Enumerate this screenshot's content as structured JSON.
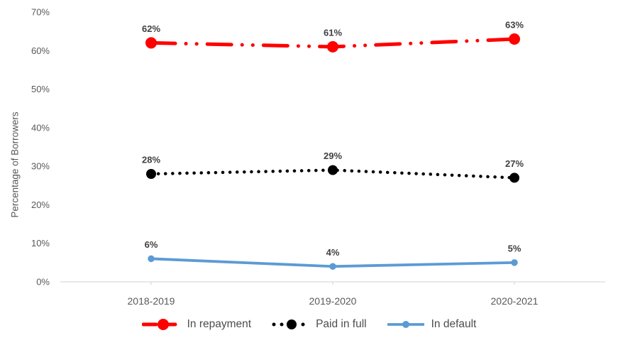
{
  "chart_data": {
    "type": "line",
    "title": "",
    "ylabel": "Percentage of Borrowers",
    "xlabel": "",
    "categories": [
      "2018-2019",
      "2019-2020",
      "2020-2021"
    ],
    "series": [
      {
        "name": "In repayment",
        "values": [
          62,
          61,
          63
        ],
        "data_labels": [
          "62%",
          "61%",
          "63%"
        ],
        "color": "#FF0000",
        "line_style": "dash-dot-dot"
      },
      {
        "name": "Paid in full",
        "values": [
          28,
          29,
          27
        ],
        "data_labels": [
          "28%",
          "29%",
          "27%"
        ],
        "color": "#000000",
        "line_style": "dotted"
      },
      {
        "name": "In default",
        "values": [
          6,
          4,
          5
        ],
        "data_labels": [
          "6%",
          "4%",
          "5%"
        ],
        "color": "#5B9BD5",
        "line_style": "solid"
      }
    ],
    "ylim": [
      0,
      70
    ],
    "ytick_step": 10,
    "ytick_labels": [
      "0%",
      "10%",
      "20%",
      "30%",
      "40%",
      "50%",
      "60%",
      "70%"
    ],
    "grid": false,
    "legend_position": "bottom"
  },
  "colors": {
    "background": "#FFFFFF",
    "axis_line": "#D9D9D9",
    "tick_label": "#595959",
    "axis_title": "#595959",
    "data_label": "#404040",
    "legend_text": "#4D4D4D"
  }
}
